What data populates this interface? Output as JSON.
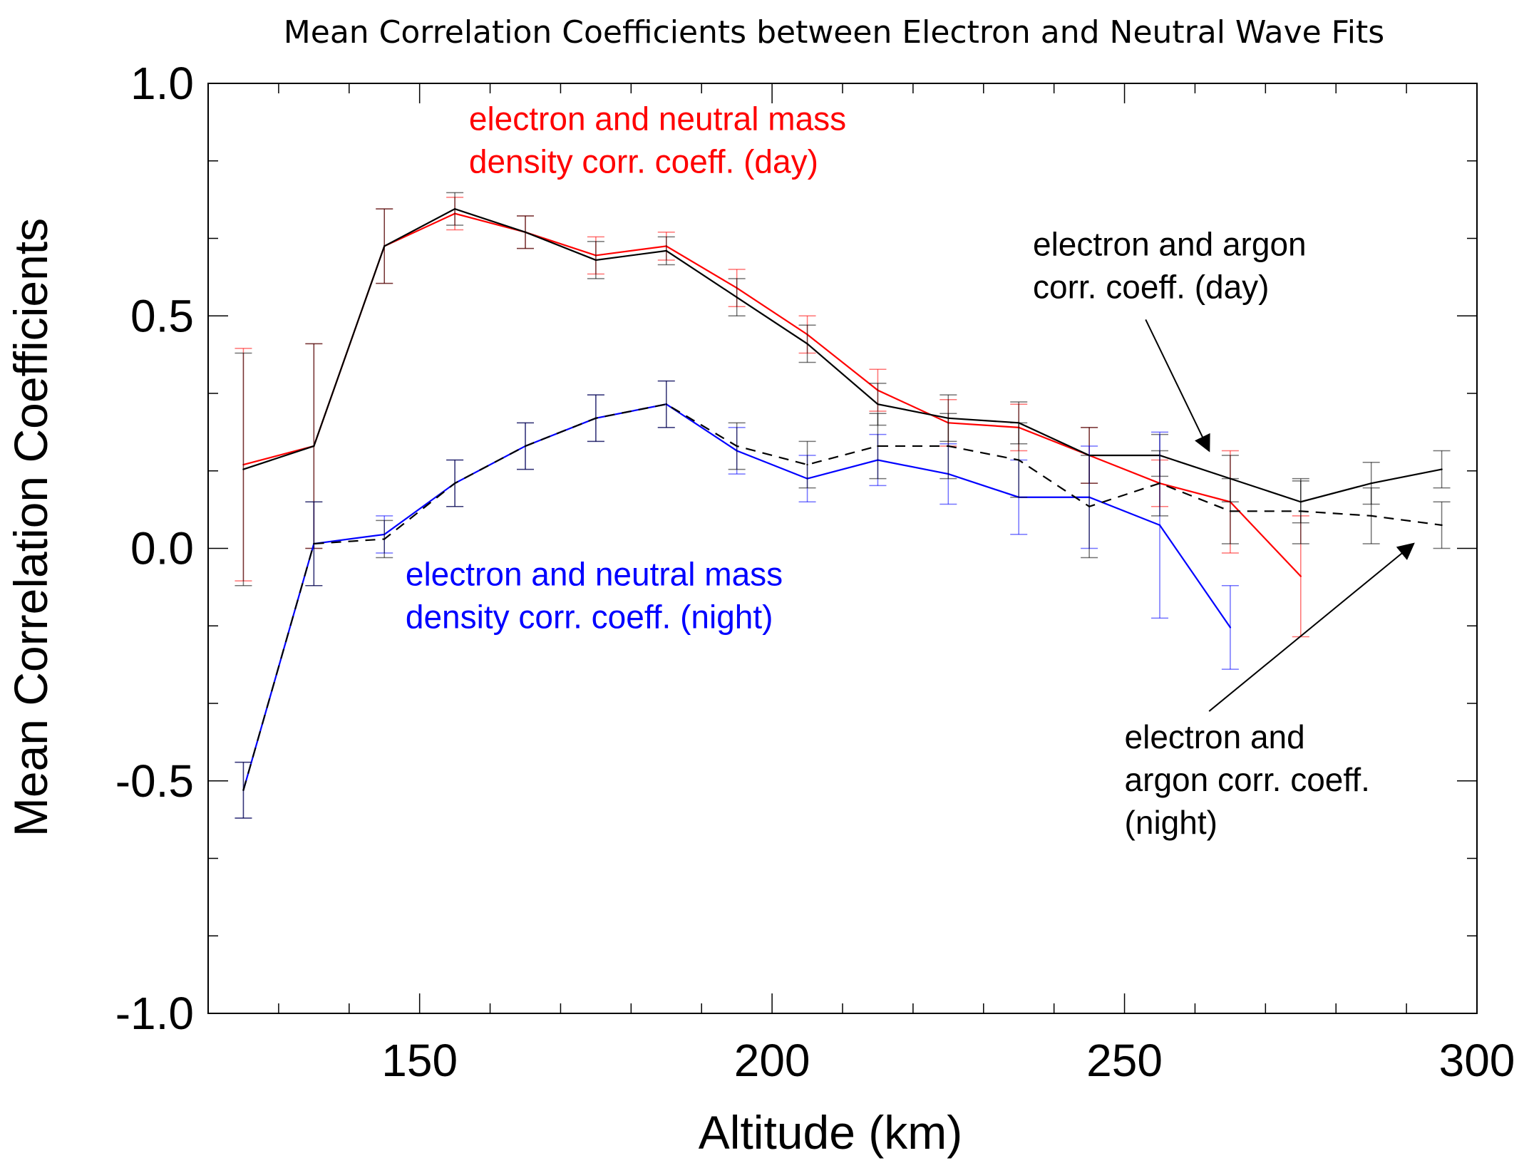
{
  "chart_data": {
    "type": "line",
    "title": "Mean Correlation Coefficients between Electron and Neutral Wave Fits",
    "xlabel": "Altitude (km)",
    "ylabel": "Mean Correlation Coefficients",
    "xlim": [
      120,
      300
    ],
    "ylim": [
      -1.0,
      1.0
    ],
    "x_ticks": [
      150,
      200,
      250,
      300
    ],
    "x_tick_labels": [
      "150",
      "200",
      "250",
      "300"
    ],
    "y_ticks": [
      -1.0,
      -0.5,
      0.0,
      0.5,
      1.0
    ],
    "y_tick_labels": [
      "-1.0",
      "-0.5",
      "0.0",
      "0.5",
      "1.0"
    ],
    "grid": false,
    "series": [
      {
        "name": "electron and neutral mass density corr. coeff. (day)",
        "color": "#ff0000",
        "dash": "solid",
        "x": [
          125,
          135,
          145,
          155,
          165,
          175,
          185,
          195,
          205,
          215,
          225,
          235,
          245,
          255,
          265,
          275
        ],
        "y": [
          0.18,
          0.22,
          0.65,
          0.72,
          0.68,
          0.63,
          0.65,
          0.56,
          0.46,
          0.34,
          0.27,
          0.26,
          0.2,
          0.14,
          0.1,
          -0.06
        ],
        "err": [
          0.25,
          0.22,
          0.08,
          0.035,
          0.035,
          0.04,
          0.03,
          0.04,
          0.04,
          0.045,
          0.05,
          0.05,
          0.06,
          0.05,
          0.11,
          0.13
        ]
      },
      {
        "name": "electron and argon corr. coeff. (day)",
        "color": "#000000",
        "dash": "solid",
        "x": [
          125,
          135,
          145,
          155,
          165,
          175,
          185,
          195,
          205,
          215,
          225,
          235,
          245,
          255,
          265,
          275,
          285,
          295
        ],
        "y": [
          0.17,
          0.22,
          0.65,
          0.73,
          0.68,
          0.62,
          0.64,
          0.54,
          0.44,
          0.31,
          0.28,
          0.27,
          0.2,
          0.2,
          0.15,
          0.1,
          0.14,
          0.17
        ],
        "err": [
          0.25,
          0.22,
          0.08,
          0.035,
          0.035,
          0.04,
          0.03,
          0.04,
          0.04,
          0.045,
          0.05,
          0.045,
          0.06,
          0.045,
          0.05,
          0.045,
          0.045,
          0.04
        ]
      },
      {
        "name": "electron and neutral mass density corr. coeff. (night)",
        "color": "#0000ff",
        "dash": "solid",
        "x": [
          125,
          135,
          145,
          155,
          165,
          175,
          185,
          195,
          205,
          215,
          225,
          235,
          245,
          255,
          265
        ],
        "y": [
          -0.52,
          0.01,
          0.03,
          0.14,
          0.22,
          0.28,
          0.31,
          0.21,
          0.15,
          0.19,
          0.16,
          0.11,
          0.11,
          0.05,
          -0.17
        ],
        "err": [
          0.06,
          0.09,
          0.04,
          0.05,
          0.05,
          0.05,
          0.05,
          0.05,
          0.05,
          0.055,
          0.065,
          0.08,
          0.11,
          0.2,
          0.09
        ]
      },
      {
        "name": "electron and argon corr. coeff. (night)",
        "color": "#000000",
        "dash": "dashed",
        "x": [
          125,
          135,
          145,
          155,
          165,
          175,
          185,
          195,
          205,
          215,
          225,
          235,
          245,
          255,
          265,
          275,
          285,
          295
        ],
        "y": [
          -0.52,
          0.01,
          0.02,
          0.14,
          0.22,
          0.28,
          0.31,
          0.22,
          0.18,
          0.22,
          0.22,
          0.19,
          0.09,
          0.14,
          0.08,
          0.08,
          0.07,
          0.05
        ],
        "err": [
          0.06,
          0.09,
          0.04,
          0.05,
          0.05,
          0.05,
          0.05,
          0.05,
          0.05,
          0.07,
          0.07,
          0.08,
          0.11,
          0.07,
          0.07,
          0.07,
          0.06,
          0.05
        ]
      }
    ],
    "annotations": [
      {
        "lines": [
          "electron and neutral mass",
          "density corr. coeff. (day)"
        ],
        "color": "#ff0000",
        "anchor": [
          157,
          0.9
        ]
      },
      {
        "lines": [
          "electron and argon",
          "corr. coeff. (day)"
        ],
        "color": "#000000",
        "anchor": [
          237,
          0.63
        ],
        "arrow_to": [
          262,
          0.21
        ]
      },
      {
        "lines": [
          "electron and neutral mass",
          "density corr. coeff. (night)"
        ],
        "color": "#0000ff",
        "anchor": [
          148,
          -0.08
        ],
        "arrow_to": null
      },
      {
        "lines": [
          "electron and",
          "argon corr. coeff.",
          "(night)"
        ],
        "color": "#000000",
        "anchor": [
          250,
          -0.43
        ],
        "arrow_to": [
          291,
          0.01
        ]
      }
    ]
  }
}
